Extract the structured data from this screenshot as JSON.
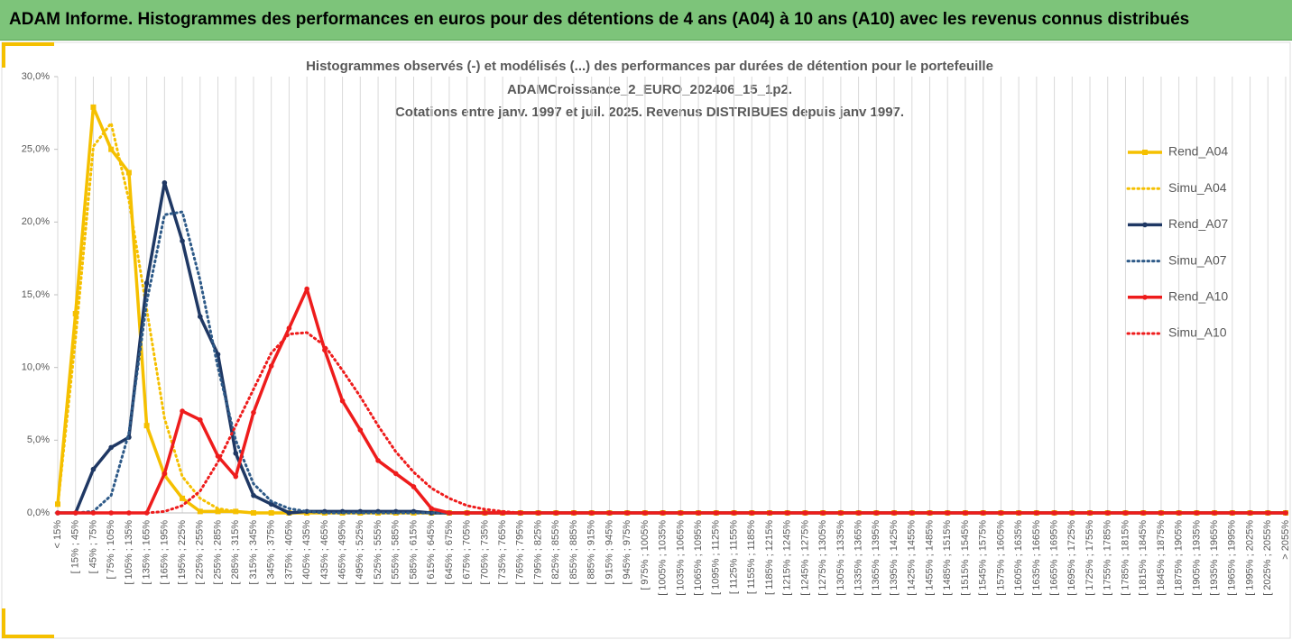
{
  "page_title": "ADAM Informe. Histogrammes des performances en euros pour des détentions de 4 ans (A04) à 10 ans (A10) avec les revenus connus distribués",
  "chart_data": {
    "type": "line",
    "title_lines": [
      "Histogrammes observés (-) et modélisés (...) des performances par durées de détention pour le portefeuille",
      "ADAMCroissance_2_EURO_202406_15_1p2.",
      "Cotations entre janv. 1997 et juil. 2025. Revenus DISTRIBUES depuis janv 1997."
    ],
    "categories": [
      "< 15%",
      "[ 15% ; 45%",
      "[ 45% ; 75%",
      "[ 75% ; 105%",
      "[ 105% ; 135%",
      "[ 135% ; 165%",
      "[ 165% ; 195%",
      "[ 195% ; 225%",
      "[ 225% ; 255%",
      "[ 255% ; 285%",
      "[ 285% ; 315%",
      "[ 315% ; 345%",
      "[ 345% ; 375%",
      "[ 375% ; 405%",
      "[ 405% ; 435%",
      "[ 435% ; 465%",
      "[ 465% ; 495%",
      "[ 495% ; 525%",
      "[ 525% ; 555%",
      "[ 555% ; 585%",
      "[ 585% ; 615%",
      "[ 615% ; 645%",
      "[ 645% ; 675%",
      "[ 675% ; 705%",
      "[ 705% ; 735%",
      "[ 735% ; 765%",
      "[ 765% ; 795%",
      "[ 795% ; 825%",
      "[ 825% ; 855%",
      "[ 855% ; 885%",
      "[ 885% ; 915%",
      "[ 915% ; 945%",
      "[ 945% ; 975%",
      "[ 975% ; 1005%",
      "[ 1005% ; 1035%",
      "[ 1035% ; 1065%",
      "[ 1065% ; 1095%",
      "[ 1095% ; 1125%",
      "[ 1125% ; 1155%",
      "[ 1155% ; 1185%",
      "[ 1185% ; 1215%",
      "[ 1215% ; 1245%",
      "[ 1245% ; 1275%",
      "[ 1275% ; 1305%",
      "[ 1305% ; 1335%",
      "[ 1335% ; 1365%",
      "[ 1365% ; 1395%",
      "[ 1395% ; 1425%",
      "[ 1425% ; 1455%",
      "[ 1455% ; 1485%",
      "[ 1485% ; 1515%",
      "[ 1515% ; 1545%",
      "[ 1545% ; 1575%",
      "[ 1575% ; 1605%",
      "[ 1605% ; 1635%",
      "[ 1635% ; 1665%",
      "[ 1665% ; 1695%",
      "[ 1695% ; 1725%",
      "[ 1725% ; 1755%",
      "[ 1755% ; 1785%",
      "[ 1785% ; 1815%",
      "[ 1815% ; 1845%",
      "[ 1845% ; 1875%",
      "[ 1875% ; 1905%",
      "[ 1905% ; 1935%",
      "[ 1935% ; 1965%",
      "[ 1965% ; 1995%",
      "[ 1995% ; 2025%",
      "[ 2025% ; 2055%",
      "> 2055%"
    ],
    "series": [
      {
        "name": "Rend_A04",
        "color": "#f5c000",
        "dashed": false,
        "marker": "square",
        "values": [
          0.6,
          13.7,
          27.9,
          25.0,
          23.4,
          6.0,
          2.6,
          1.0,
          0.1,
          0.1,
          0.1,
          0,
          0,
          0,
          0,
          0,
          0,
          0,
          0,
          0,
          0,
          0,
          0,
          0,
          0,
          0,
          0,
          0,
          0,
          0,
          0,
          0,
          0,
          0,
          0,
          0,
          0,
          0,
          0,
          0,
          0,
          0,
          0,
          0,
          0,
          0,
          0,
          0,
          0,
          0,
          0,
          0,
          0,
          0,
          0,
          0,
          0,
          0,
          0,
          0,
          0,
          0,
          0,
          0,
          0,
          0,
          0,
          0,
          0,
          0
        ]
      },
      {
        "name": "Simu_A04",
        "color": "#f5c000",
        "dashed": true,
        "marker": "none",
        "values": [
          0.5,
          12.0,
          25.2,
          26.8,
          21.5,
          14.0,
          6.5,
          2.5,
          1.0,
          0.3,
          0.1,
          0,
          0,
          0,
          0,
          0,
          0,
          0,
          0,
          0,
          0,
          0,
          0,
          0,
          0,
          0,
          0,
          0,
          0,
          0,
          0,
          0,
          0,
          0,
          0,
          0,
          0,
          0,
          0,
          0,
          0,
          0,
          0,
          0,
          0,
          0,
          0,
          0,
          0,
          0,
          0,
          0,
          0,
          0,
          0,
          0,
          0,
          0,
          0,
          0,
          0,
          0,
          0,
          0,
          0,
          0,
          0,
          0,
          0,
          0
        ]
      },
      {
        "name": "Rend_A07",
        "color": "#1f3864",
        "dashed": false,
        "marker": "circle",
        "values": [
          0,
          0,
          3.0,
          4.5,
          5.2,
          15.8,
          22.7,
          18.7,
          13.5,
          10.9,
          4.1,
          1.2,
          0.6,
          0,
          0.1,
          0.1,
          0.1,
          0.1,
          0.1,
          0.1,
          0.1,
          0,
          0,
          0,
          0,
          0,
          0,
          0,
          0,
          0,
          0,
          0,
          0,
          0,
          0,
          0,
          0,
          0,
          0,
          0,
          0,
          0,
          0,
          0,
          0,
          0,
          0,
          0,
          0,
          0,
          0,
          0,
          0,
          0,
          0,
          0,
          0,
          0,
          0,
          0,
          0,
          0,
          0,
          0,
          0,
          0,
          0,
          0,
          0,
          0
        ]
      },
      {
        "name": "Simu_A07",
        "color": "#2e5a88",
        "dashed": true,
        "marker": "none",
        "values": [
          0,
          0,
          0.1,
          1.2,
          5.5,
          14.5,
          20.5,
          20.7,
          16.0,
          10.0,
          5.0,
          2.0,
          0.8,
          0.3,
          0.1,
          0,
          0,
          0,
          0,
          0,
          0,
          0,
          0,
          0,
          0,
          0,
          0,
          0,
          0,
          0,
          0,
          0,
          0,
          0,
          0,
          0,
          0,
          0,
          0,
          0,
          0,
          0,
          0,
          0,
          0,
          0,
          0,
          0,
          0,
          0,
          0,
          0,
          0,
          0,
          0,
          0,
          0,
          0,
          0,
          0,
          0,
          0,
          0,
          0,
          0,
          0,
          0,
          0,
          0,
          0
        ]
      },
      {
        "name": "Rend_A10",
        "color": "#ee1c1c",
        "dashed": false,
        "marker": "circle",
        "values": [
          0,
          0,
          0,
          0,
          0,
          0,
          2.7,
          7.0,
          6.4,
          3.9,
          2.5,
          6.9,
          10.1,
          12.7,
          15.4,
          11.2,
          7.7,
          5.7,
          3.6,
          2.7,
          1.8,
          0.3,
          0,
          0,
          0,
          0,
          0,
          0,
          0,
          0,
          0,
          0,
          0,
          0,
          0,
          0,
          0,
          0,
          0,
          0,
          0,
          0,
          0,
          0,
          0,
          0,
          0,
          0,
          0,
          0,
          0,
          0,
          0,
          0,
          0,
          0,
          0,
          0,
          0,
          0,
          0,
          0,
          0,
          0,
          0,
          0,
          0,
          0,
          0,
          0
        ]
      },
      {
        "name": "Simu_A10",
        "color": "#ee1c1c",
        "dashed": true,
        "marker": "none",
        "values": [
          0,
          0,
          0,
          0,
          0,
          0,
          0.1,
          0.5,
          1.5,
          3.5,
          6.0,
          8.5,
          11.0,
          12.3,
          12.4,
          11.5,
          9.8,
          8.0,
          6.0,
          4.2,
          2.8,
          1.7,
          1.0,
          0.5,
          0.25,
          0.1,
          0,
          0,
          0,
          0,
          0,
          0,
          0,
          0,
          0,
          0,
          0,
          0,
          0,
          0,
          0,
          0,
          0,
          0,
          0,
          0,
          0,
          0,
          0,
          0,
          0,
          0,
          0,
          0,
          0,
          0,
          0,
          0,
          0,
          0,
          0,
          0,
          0,
          0,
          0,
          0,
          0,
          0,
          0,
          0
        ]
      }
    ],
    "ylim": [
      0,
      30
    ],
    "yticks": [
      {
        "value": 0,
        "label": "0,0%"
      },
      {
        "value": 5,
        "label": "5,0%"
      },
      {
        "value": 10,
        "label": "10,0%"
      },
      {
        "value": 15,
        "label": "15,0%"
      },
      {
        "value": 20,
        "label": "20,0%"
      },
      {
        "value": 25,
        "label": "25,0%"
      },
      {
        "value": 30,
        "label": "30,0%"
      }
    ],
    "grid": true,
    "legend": "right"
  }
}
